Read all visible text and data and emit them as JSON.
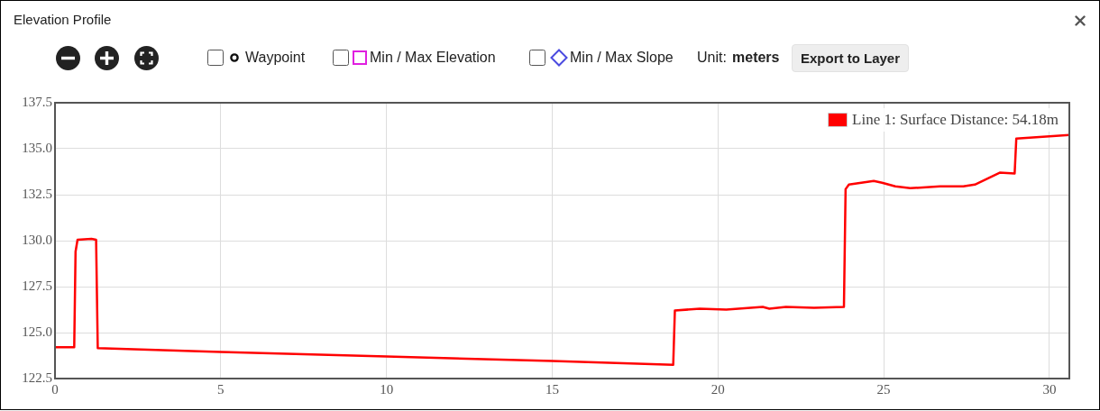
{
  "chart_data": {
    "type": "line",
    "title": "Elevation Profile",
    "x": [
      0,
      0.58,
      0.62,
      0.68,
      1.1,
      1.24,
      1.29,
      5,
      10,
      15,
      18.65,
      18.7,
      19.45,
      20.25,
      21.35,
      21.55,
      22.05,
      22.9,
      23.8,
      23.85,
      23.95,
      24.7,
      24.95,
      25.35,
      25.8,
      26.7,
      27.4,
      27.75,
      28.5,
      28.95,
      29.0,
      30.6
    ],
    "series": [
      {
        "name": "Line 1: Surface Distance: 54.18m",
        "color": "#ff0000",
        "values": [
          124.2,
          124.2,
          129.4,
          130.05,
          130.1,
          130.05,
          124.15,
          123.95,
          123.7,
          123.45,
          123.25,
          126.2,
          126.3,
          126.25,
          126.4,
          126.3,
          126.4,
          126.35,
          126.4,
          132.8,
          133.05,
          133.25,
          133.15,
          132.95,
          132.85,
          132.95,
          132.95,
          133.05,
          133.7,
          133.65,
          135.55,
          135.75
        ]
      }
    ],
    "xlim": [
      0,
      30.6
    ],
    "xticks": [
      0,
      5,
      10,
      15,
      20,
      25,
      30
    ],
    "ylim": [
      122.5,
      137.5
    ],
    "yticks": [
      122.5,
      {
        "value": 125,
        "label": "125.0"
      },
      127.5,
      {
        "value": 130,
        "label": "130.0"
      },
      132.5,
      {
        "value": 135,
        "label": "135.0"
      },
      137.5
    ],
    "grid": true,
    "legend": "top right",
    "marker": "none",
    "line_style": "solid",
    "annotations": [
      "Waypoint",
      "Min / Max Elevation",
      "Min / Max Slope",
      "Unit:",
      "meters",
      "Export to Layer"
    ]
  }
}
